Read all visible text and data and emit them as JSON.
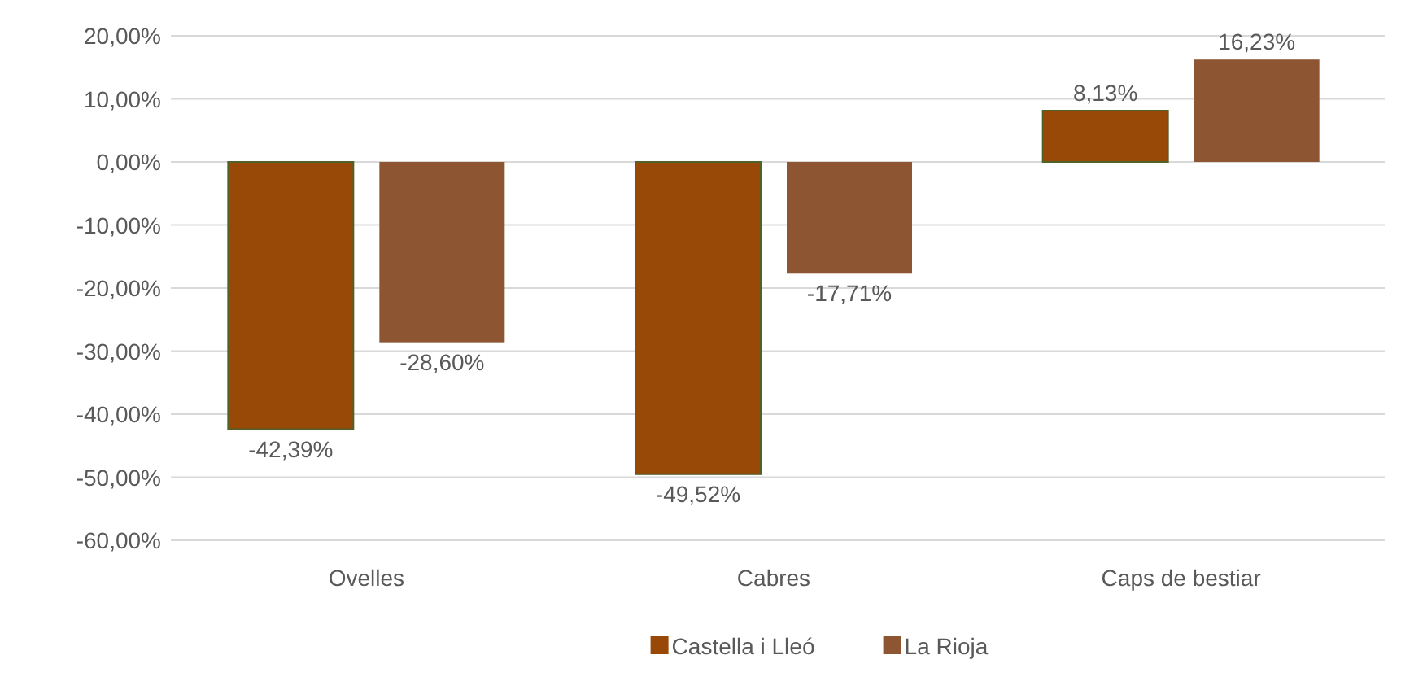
{
  "chart_data": {
    "type": "bar",
    "categories": [
      "Ovelles",
      "Cabres",
      "Caps de bestiar"
    ],
    "series": [
      {
        "name": "Castella i Lleó",
        "color": "#984807",
        "values": [
          -42.39,
          -49.52,
          8.13
        ],
        "value_labels": [
          "-42,39%",
          "-49,52%",
          "8,13%"
        ]
      },
      {
        "name": "La Rioja",
        "color": "#8d5532",
        "values": [
          -28.6,
          -17.71,
          16.23
        ],
        "value_labels": [
          "-28,60%",
          "-17,71%",
          "16,23%"
        ]
      }
    ],
    "ylim": [
      -60,
      20
    ],
    "yticks": [
      {
        "value": -60,
        "label": "-60,00%"
      },
      {
        "value": -50,
        "label": "-50,00%"
      },
      {
        "value": -40,
        "label": "-40,00%"
      },
      {
        "value": -30,
        "label": "-30,00%"
      },
      {
        "value": -20,
        "label": "-20,00%"
      },
      {
        "value": -10,
        "label": "-10,00%"
      },
      {
        "value": 0,
        "label": "0,00%"
      },
      {
        "value": 10,
        "label": "10,00%"
      },
      {
        "value": 20,
        "label": "20,00%"
      }
    ],
    "grid": "y",
    "legend": "bottom"
  }
}
